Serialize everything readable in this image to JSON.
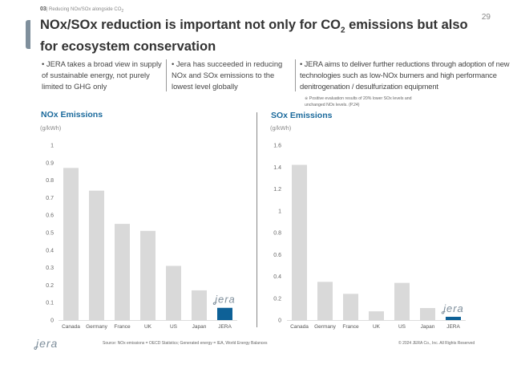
{
  "header": {
    "section_num": "03",
    "section_label": "Reducing NOx/SOx alongside CO",
    "section_sub": "2",
    "page_number": "29",
    "title_part1": "NOx/SOx reduction is important not only for CO",
    "title_sub": "2",
    "title_part2": " emissions but also for ecosystem conservation"
  },
  "bullets": [
    "• JERA takes a broad view in supply of sustainable energy, not purely limited to GHG only",
    "• Jera has succeeded in reducing NOx and SOx emissions to the lowest level globally",
    "• JERA aims to deliver further reductions  through adoption of new technologies such as low-NOx burners and high performance denitrogenation / desulfurization equipment"
  ],
  "note": "※  Positive evaluation results of 20% lower SOx levels and unchanged NOx levels. (P.24)",
  "chart_data": [
    {
      "type": "bar",
      "title": "NOx Emissions",
      "ylabel": "(g/kWh)",
      "categories": [
        "Canada",
        "Germany",
        "France",
        "UK",
        "US",
        "Japan",
        "JERA"
      ],
      "values": [
        0.87,
        0.74,
        0.55,
        0.51,
        0.31,
        0.17,
        0.07
      ],
      "ylim": [
        0,
        1
      ],
      "yticks": [
        "0",
        "0.1",
        "0.2",
        "0.3",
        "0.4",
        "0.5",
        "0.6",
        "0.7",
        "0.8",
        "0.9",
        "1"
      ],
      "highlight_label": "JERA",
      "grid": false
    },
    {
      "type": "bar",
      "title": "SOx Emissions",
      "ylabel": "(g/kWh)",
      "categories": [
        "Canada",
        "Germany",
        "France",
        "UK",
        "US",
        "Japan",
        "JERA"
      ],
      "values": [
        1.42,
        0.35,
        0.24,
        0.08,
        0.34,
        0.11,
        0.03
      ],
      "ylim": [
        0,
        1.6
      ],
      "yticks": [
        "0",
        "0.2",
        "0.4",
        "0.6",
        "0.8",
        "1",
        "1.2",
        "1.4",
        "1.6"
      ],
      "highlight_label": "JERA",
      "grid": false
    }
  ],
  "colors": {
    "bar": "#d9d9d9",
    "highlight": "#0e6197",
    "title": "#1b6a9c",
    "logo": "#7f8f9c"
  },
  "footer": {
    "logo": "JERA",
    "source": "Source: NOx emissions = OECD Statistics; Generated energy = IEA, World Energy Balances",
    "copyright": "© 2024 JERA Co., Inc. All Rights Reserved"
  }
}
